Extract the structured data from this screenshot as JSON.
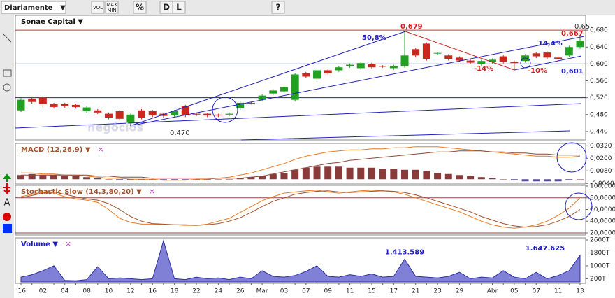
{
  "toolbar": {
    "period": "Diariamente",
    "buttons": [
      "VOL",
      "MAX",
      "MIN",
      "%",
      "D",
      "L",
      "?"
    ],
    "side": "A"
  },
  "chart_data": [
    {
      "type": "candlestick",
      "title": "Sonae Capital ▼",
      "up_color": "#22a022",
      "down_color": "#c8281e",
      "open": [
        0.49,
        0.518,
        0.52,
        0.505,
        0.505,
        0.503,
        0.488,
        0.49,
        0.482,
        0.488,
        0.46,
        0.49,
        0.488,
        0.482,
        0.478,
        0.5,
        0.482,
        0.482,
        0.48,
        0.48,
        0.495,
        0.508,
        0.515,
        0.53,
        0.535,
        0.515,
        0.578,
        0.565,
        0.585,
        0.585,
        0.595,
        0.59,
        0.6,
        0.595,
        0.59,
        0.595,
        0.635,
        0.648,
        0.625,
        0.62,
        0.615,
        0.608,
        0.6,
        0.605,
        0.618,
        0.605,
        0.607,
        0.625,
        0.627,
        0.615,
        0.62,
        0.64
      ],
      "high": [
        0.519,
        0.522,
        0.524,
        0.508,
        0.508,
        0.506,
        0.5,
        0.493,
        0.485,
        0.491,
        0.482,
        0.493,
        0.491,
        0.485,
        0.491,
        0.503,
        0.484,
        0.484,
        0.482,
        0.485,
        0.511,
        0.51,
        0.528,
        0.54,
        0.548,
        0.578,
        0.581,
        0.588,
        0.588,
        0.595,
        0.601,
        0.605,
        0.603,
        0.597,
        0.598,
        0.679,
        0.638,
        0.651,
        0.628,
        0.623,
        0.618,
        0.611,
        0.61,
        0.613,
        0.621,
        0.608,
        0.623,
        0.628,
        0.63,
        0.618,
        0.643,
        0.665
      ],
      "low": [
        0.486,
        0.506,
        0.495,
        0.494,
        0.496,
        0.494,
        0.484,
        0.481,
        0.469,
        0.466,
        0.456,
        0.469,
        0.474,
        0.473,
        0.474,
        0.474,
        0.476,
        0.474,
        0.474,
        0.476,
        0.491,
        0.504,
        0.511,
        0.526,
        0.531,
        0.511,
        0.566,
        0.561,
        0.574,
        0.581,
        0.591,
        0.586,
        0.588,
        0.591,
        0.586,
        0.591,
        0.616,
        0.608,
        0.622,
        0.608,
        0.604,
        0.599,
        0.596,
        0.601,
        0.601,
        0.585,
        0.603,
        0.614,
        0.611,
        0.608,
        0.616,
        0.636
      ],
      "close": [
        0.515,
        0.51,
        0.505,
        0.498,
        0.5,
        0.498,
        0.497,
        0.485,
        0.473,
        0.47,
        0.48,
        0.473,
        0.478,
        0.477,
        0.488,
        0.478,
        0.48,
        0.478,
        0.478,
        0.482,
        0.508,
        0.507,
        0.525,
        0.537,
        0.545,
        0.575,
        0.57,
        0.585,
        0.578,
        0.592,
        0.598,
        0.602,
        0.592,
        0.594,
        0.595,
        0.62,
        0.62,
        0.612,
        0.626,
        0.612,
        0.608,
        0.603,
        0.607,
        0.61,
        0.605,
        0.602,
        0.62,
        0.618,
        0.615,
        0.612,
        0.64,
        0.655
      ],
      "ylim": [
        0.42,
        0.715
      ],
      "yticks": [
        {
          "value": 0.44,
          "label": "0,440"
        },
        {
          "value": 0.48,
          "label": "0,480"
        },
        {
          "value": 0.52,
          "label": "0,520"
        },
        {
          "value": 0.56,
          "label": "0,560"
        },
        {
          "value": 0.6,
          "label": "0,600"
        },
        {
          "value": 0.64,
          "label": "0,640"
        },
        {
          "value": 0.68,
          "label": "0,680"
        }
      ],
      "hlines": [
        {
          "value": 0.68,
          "color": "#d03030"
        },
        {
          "value": 0.6,
          "color": "#2020a0"
        },
        {
          "value": 0.52,
          "color": "#2020a0"
        }
      ],
      "annotations": [
        {
          "text": "0,679",
          "color": "#d02020"
        },
        {
          "text": "50,8%",
          "color": "#2020c0"
        },
        {
          "text": "-14%",
          "color": "#d02020"
        },
        {
          "text": "-10%",
          "color": "#d02020"
        },
        {
          "text": "14,4%",
          "color": "#2020c0"
        },
        {
          "text": "0,667",
          "color": "#d02020"
        },
        {
          "text": "0,601",
          "color": "#2020c0"
        },
        {
          "text": "0,470",
          "color": "#333333"
        },
        {
          "text": "0,65",
          "color": "#333333"
        }
      ]
    },
    {
      "type": "macd",
      "title": "MACD (12,26,9) ▼",
      "close_mark": "×",
      "series": [
        {
          "kind": "bar",
          "color": "#8b3a3a",
          "neg_color": "#5a4a9a",
          "values": [
            0.004,
            0.005,
            0.004,
            0.004,
            0.003,
            0.003,
            0.002,
            0.001,
            0,
            -0.001,
            -0.001,
            -0.001,
            -0.001,
            -0.001,
            -0.001,
            -0.001,
            -0.001,
            -0.001,
            0,
            0,
            0.001,
            0.002,
            0.003,
            0.005,
            0.006,
            0.009,
            0.011,
            0.012,
            0.012,
            0.012,
            0.011,
            0.011,
            0.011,
            0.01,
            0.01,
            0.009,
            0.009,
            0.008,
            0.006,
            0.005,
            0.004,
            0.003,
            0.002,
            0.001,
            0,
            -0.001,
            -0.002,
            -0.002,
            -0.002,
            -0.002,
            -0.001,
            0
          ]
        },
        {
          "kind": "line",
          "color": "#e87a20",
          "values": [
            0.006,
            0.006,
            0.005,
            0.005,
            0.004,
            0.004,
            0.003,
            0.002,
            0.001,
            0.001,
            0.0,
            0.0,
            0.0,
            -0.001,
            -0.001,
            -0.001,
            0.0,
            0.0,
            0.001,
            0.002,
            0.004,
            0.006,
            0.009,
            0.012,
            0.015,
            0.019,
            0.022,
            0.024,
            0.026,
            0.027,
            0.028,
            0.028,
            0.029,
            0.029,
            0.03,
            0.03,
            0.031,
            0.031,
            0.031,
            0.03,
            0.029,
            0.028,
            0.027,
            0.026,
            0.025,
            0.024,
            0.023,
            0.022,
            0.022,
            0.021,
            0.021,
            0.022
          ]
        },
        {
          "kind": "line",
          "color": "#8b4a3a",
          "values": [
            0.004,
            0.004,
            0.004,
            0.004,
            0.004,
            0.004,
            0.004,
            0.003,
            0.003,
            0.002,
            0.002,
            0.002,
            0.001,
            0.001,
            0.001,
            0.001,
            0.001,
            0.001,
            0.001,
            0.001,
            0.001,
            0.002,
            0.003,
            0.005,
            0.007,
            0.009,
            0.011,
            0.013,
            0.015,
            0.016,
            0.018,
            0.019,
            0.02,
            0.021,
            0.022,
            0.023,
            0.024,
            0.025,
            0.026,
            0.026,
            0.027,
            0.027,
            0.027,
            0.026,
            0.026,
            0.025,
            0.025,
            0.024,
            0.024,
            0.023,
            0.023,
            0.023
          ]
        }
      ],
      "ylim": [
        -0.0045,
        0.0342
      ],
      "yticks": [
        {
          "value": 0.032,
          "label": "0,0320"
        },
        {
          "value": 0.02,
          "label": "0,0200"
        },
        {
          "value": 0.008,
          "label": "0,0080"
        },
        {
          "value": -0.004,
          "label": "-0,0040"
        }
      ]
    },
    {
      "type": "line",
      "title": "Stochastic Slow (14,3,80,20) ▼",
      "close_mark": "×",
      "series": [
        {
          "color": "#e87a20",
          "values": [
            82,
            86,
            90,
            88,
            82,
            78,
            76,
            72,
            60,
            45,
            38,
            35,
            35,
            34,
            34,
            33,
            33,
            35,
            40,
            45,
            55,
            65,
            75,
            82,
            88,
            90,
            92,
            93,
            90,
            88,
            90,
            92,
            93,
            92,
            90,
            86,
            80,
            74,
            68,
            62,
            56,
            48,
            40,
            34,
            30,
            28,
            30,
            34,
            40,
            50,
            62,
            80
          ]
        },
        {
          "color": "#a0522d",
          "values": [
            80,
            84,
            88,
            90,
            86,
            82,
            78,
            76,
            70,
            60,
            48,
            40,
            36,
            35,
            34,
            34,
            33,
            34,
            36,
            40,
            46,
            55,
            65,
            74,
            80,
            86,
            89,
            91,
            92,
            90,
            89,
            90,
            91,
            92,
            91,
            89,
            85,
            80,
            74,
            68,
            62,
            56,
            48,
            42,
            36,
            32,
            30,
            31,
            34,
            40,
            48,
            60
          ]
        }
      ],
      "hlines": [
        {
          "value": 80,
          "color": "#8b4a4a"
        },
        {
          "value": 20,
          "color": "#8b4a4a"
        }
      ],
      "ylim": [
        16.4,
        101.2
      ],
      "yticks": [
        {
          "value": 100,
          "label": "100,0000"
        },
        {
          "value": 80,
          "label": "80,0000"
        },
        {
          "value": 60,
          "label": "60,0000"
        },
        {
          "value": 40,
          "label": "40,0000"
        },
        {
          "value": 20,
          "label": "20,0000"
        }
      ]
    },
    {
      "type": "area",
      "title": "Volume ▼",
      "close_mark": "×",
      "color": "#6a6ad0",
      "categories": [
        "'16",
        null,
        "02",
        null,
        "04",
        null,
        "08",
        null,
        "10",
        null,
        "12",
        null,
        "16",
        null,
        "18",
        null,
        "22",
        null,
        "24",
        null,
        "26",
        null,
        "Mar",
        null,
        "03",
        null,
        "07",
        null,
        "09",
        null,
        "11",
        null,
        "15",
        null,
        "17",
        null,
        "21",
        null,
        "23",
        null,
        "29",
        null,
        null,
        "Abr",
        null,
        "05",
        null,
        "07",
        null,
        "11",
        null,
        "13"
      ],
      "values": [
        300,
        450,
        700,
        1000,
        100,
        80,
        150,
        950,
        200,
        250,
        200,
        150,
        200,
        2550,
        200,
        150,
        300,
        200,
        250,
        150,
        300,
        200,
        700,
        350,
        300,
        400,
        650,
        1000,
        350,
        300,
        450,
        350,
        500,
        300,
        350,
        1413.589,
        350,
        300,
        250,
        350,
        600,
        200,
        300,
        250,
        700,
        300,
        200,
        600,
        200,
        400,
        700,
        1647.625
      ],
      "value_labels": [
        null,
        null,
        null,
        null,
        null,
        null,
        null,
        null,
        null,
        null,
        null,
        null,
        null,
        null,
        null,
        null,
        null,
        null,
        null,
        null,
        null,
        null,
        null,
        null,
        null,
        null,
        null,
        null,
        null,
        null,
        null,
        null,
        null,
        null,
        null,
        "1.413.589",
        null,
        null,
        null,
        null,
        null,
        null,
        null,
        null,
        null,
        null,
        null,
        null,
        null,
        null,
        null,
        "1.647.625"
      ],
      "ylim": [
        -85,
        2730
      ],
      "yticks": [
        {
          "value": 2600,
          "label": "2600T"
        },
        {
          "value": 1800,
          "label": "1800T"
        },
        {
          "value": 1000,
          "label": "1000T"
        },
        {
          "value": 200,
          "label": "200T"
        }
      ]
    }
  ]
}
